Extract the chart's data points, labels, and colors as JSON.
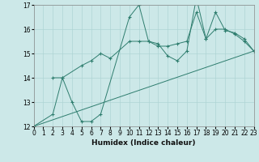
{
  "xlabel": "Humidex (Indice chaleur)",
  "xlim": [
    0,
    23
  ],
  "ylim": [
    12,
    17
  ],
  "yticks": [
    12,
    13,
    14,
    15,
    16,
    17
  ],
  "xticks": [
    0,
    1,
    2,
    3,
    4,
    5,
    6,
    7,
    8,
    9,
    10,
    11,
    12,
    13,
    14,
    15,
    16,
    17,
    18,
    19,
    20,
    21,
    22,
    23
  ],
  "line_color": "#2e7d6e",
  "bg_color": "#cce8e8",
  "grid_color": "#afd4d4",
  "lines": [
    {
      "x": [
        0,
        2,
        3,
        4,
        5,
        6,
        7,
        10,
        11,
        12,
        13,
        14,
        15,
        16,
        17,
        18,
        19,
        20,
        21,
        22,
        23
      ],
      "y": [
        12.0,
        12.5,
        14.0,
        13.0,
        12.2,
        12.2,
        12.5,
        16.5,
        17.0,
        15.5,
        15.4,
        14.9,
        14.7,
        15.1,
        17.3,
        15.6,
        16.0,
        16.0,
        15.8,
        15.5,
        15.1
      ]
    },
    {
      "x": [
        2,
        3,
        5,
        6,
        7,
        8,
        10,
        11,
        12,
        13,
        14,
        15,
        16,
        17,
        18,
        19,
        20,
        21,
        22,
        23
      ],
      "y": [
        14.0,
        14.0,
        14.5,
        14.7,
        15.0,
        14.8,
        15.5,
        15.5,
        15.5,
        15.3,
        15.3,
        15.4,
        15.5,
        16.7,
        15.6,
        16.7,
        15.95,
        15.85,
        15.6,
        15.1
      ]
    },
    {
      "x": [
        0,
        23
      ],
      "y": [
        12.0,
        15.1
      ]
    }
  ]
}
